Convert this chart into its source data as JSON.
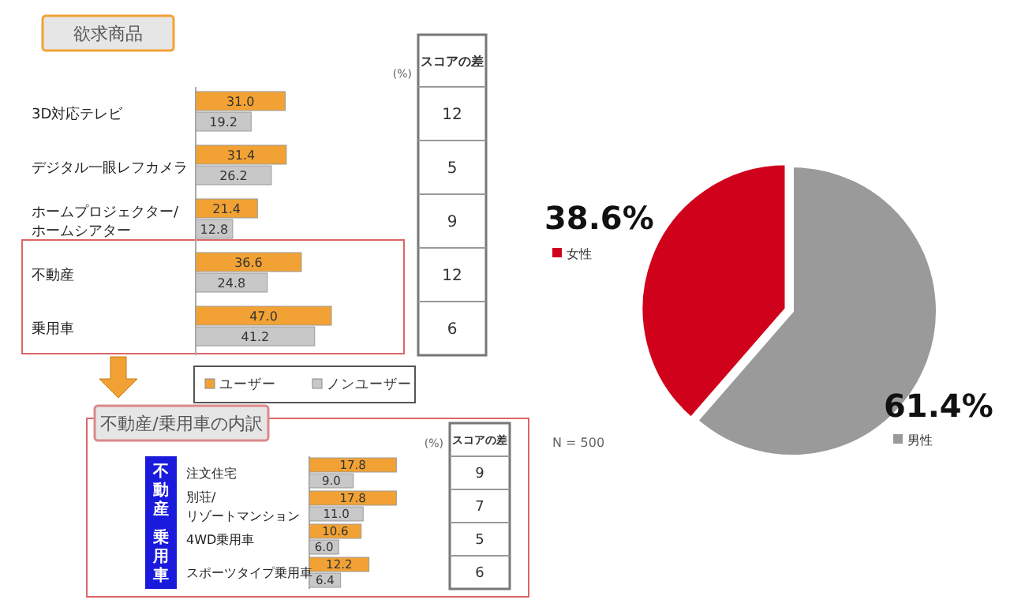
{
  "chart_data": [
    {
      "type": "bar",
      "orientation": "horizontal",
      "title": "欲求商品",
      "xlabel": "(%)",
      "categories": [
        "3D対応テレビ",
        "デジタル一眼レフカメラ",
        "ホームプロジェクター/ホームシアター",
        "不動産",
        "乗用車"
      ],
      "series": [
        {
          "name": "ユーザー",
          "color": "#f2a234",
          "values": [
            31.0,
            31.4,
            21.4,
            36.6,
            47.0
          ],
          "value_labels": [
            "31.0",
            "31.4",
            "21.4",
            "36.6",
            "47.0"
          ]
        },
        {
          "name": "ノンユーザー",
          "color": "#c8c8c8",
          "values": [
            19.2,
            26.2,
            12.8,
            24.8,
            41.2
          ],
          "value_labels": [
            "19.2",
            "26.2",
            "12.8",
            "24.8",
            "41.2"
          ]
        }
      ],
      "legend": "bottom",
      "tick_labels": "y",
      "annotations": [
        "スコアの差",
        "12",
        "5",
        "9",
        "12",
        "6"
      ]
    },
    {
      "type": "bar",
      "orientation": "horizontal",
      "title": "不動産/乗用車の内訳",
      "xlabel": "(%)",
      "categories": [
        "注文住宅",
        "別荘/リゾートマンション",
        "4WD乗用車",
        "スポーツタイプ乗用車"
      ],
      "series": [
        {
          "color": "#f2a234",
          "values": [
            17.8,
            17.8,
            10.6,
            12.2
          ],
          "value_labels": [
            "17.8",
            "17.8",
            "10.6",
            "12.2"
          ]
        },
        {
          "color": "#c8c8c8",
          "values": [
            9.0,
            11.0,
            6.0,
            6.4
          ],
          "value_labels": [
            "9.0",
            "11.0",
            "6.0",
            "6.4"
          ]
        }
      ],
      "tick_labels": "y",
      "annotations": [
        "スコアの差",
        "9",
        "7",
        "5",
        "6",
        "不動産",
        "乗用車"
      ]
    },
    {
      "type": "pie",
      "categories": [
        "女性",
        "男性"
      ],
      "values": [
        38.6,
        61.4
      ],
      "value_labels": [
        "38.6%",
        "61.4%"
      ],
      "colors": [
        "#d0021b",
        "#9a9a9a"
      ],
      "legend": "left",
      "annotations": [
        "N = 500"
      ]
    }
  ]
}
